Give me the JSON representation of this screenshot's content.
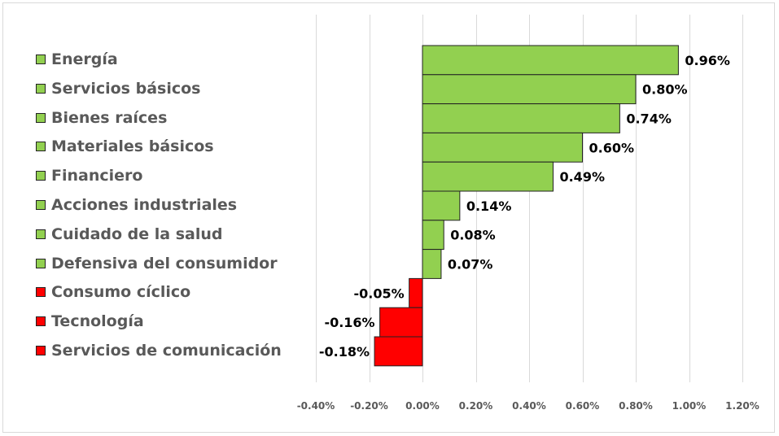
{
  "chart_data": {
    "type": "bar",
    "orientation": "horizontal",
    "categories": [
      "Energía",
      "Servicios básicos",
      "Bienes raíces",
      "Materiales básicos",
      "Financiero",
      "Acciones industriales",
      "Cuidado de la salud",
      "Defensiva del consumidor",
      "Consumo cíclico",
      "Tecnología",
      "Servicios de comunicación"
    ],
    "values": [
      0.96,
      0.8,
      0.74,
      0.6,
      0.49,
      0.14,
      0.08,
      0.07,
      -0.05,
      -0.16,
      -0.18
    ],
    "data_labels": [
      "0.96%",
      "0.80%",
      "0.74%",
      "0.60%",
      "0.49%",
      "0.14%",
      "0.08%",
      "0.07%",
      "-0.05%",
      "-0.16%",
      "-0.18%"
    ],
    "xlim": [
      -0.4,
      1.2
    ],
    "xticks": [
      -0.4,
      -0.2,
      0.0,
      0.2,
      0.4,
      0.6,
      0.8,
      1.0,
      1.2
    ],
    "xtick_labels": [
      "-0.40%",
      "-0.20%",
      "0.00%",
      "0.20%",
      "0.40%",
      "0.60%",
      "0.80%",
      "1.00%",
      "1.20%"
    ],
    "title": "",
    "xlabel": "",
    "ylabel": "",
    "grid": "vertical",
    "legend_position": "left",
    "colors": {
      "positive": "#92d050",
      "negative": "#ff0000",
      "grid": "#d9d9d9",
      "bar_border": "#222222"
    }
  }
}
